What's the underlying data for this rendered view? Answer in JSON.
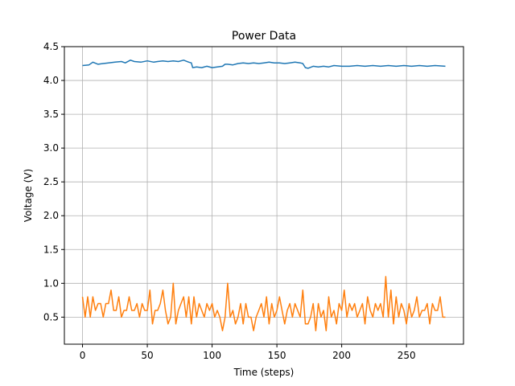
{
  "chart_data": {
    "type": "line",
    "title": "Power Data",
    "xlabel": "Time (steps)",
    "ylabel": "Voltage (V)",
    "xlim": [
      -14,
      294
    ],
    "ylim": [
      0.1,
      4.5
    ],
    "xticks": [
      0,
      50,
      100,
      150,
      200,
      250
    ],
    "yticks": [
      0.5,
      1.0,
      1.5,
      2.0,
      2.5,
      3.0,
      3.5,
      4.0,
      4.5
    ],
    "ytick_labels": [
      "0.5",
      "1.0",
      "1.5",
      "2.0",
      "2.5",
      "3.0",
      "3.5",
      "4.0",
      "4.5"
    ],
    "grid": true,
    "series": [
      {
        "color": "#1f77b4",
        "x": [
          0,
          5,
          8,
          12,
          16,
          20,
          25,
          30,
          33,
          37,
          40,
          45,
          50,
          55,
          58,
          62,
          66,
          70,
          74,
          78,
          82,
          84,
          85,
          88,
          92,
          96,
          100,
          104,
          108,
          110,
          112,
          116,
          120,
          124,
          128,
          132,
          136,
          140,
          144,
          148,
          152,
          156,
          160,
          164,
          168,
          170,
          172,
          174,
          178,
          182,
          186,
          190,
          194,
          200,
          206,
          212,
          218,
          224,
          230,
          236,
          242,
          248,
          254,
          260,
          266,
          272,
          280
        ],
        "y": [
          4.22,
          4.23,
          4.27,
          4.24,
          4.25,
          4.26,
          4.27,
          4.28,
          4.26,
          4.3,
          4.28,
          4.27,
          4.29,
          4.27,
          4.28,
          4.29,
          4.28,
          4.29,
          4.28,
          4.3,
          4.27,
          4.26,
          4.19,
          4.2,
          4.19,
          4.21,
          4.19,
          4.2,
          4.21,
          4.24,
          4.24,
          4.23,
          4.25,
          4.26,
          4.25,
          4.26,
          4.25,
          4.26,
          4.27,
          4.26,
          4.26,
          4.25,
          4.26,
          4.27,
          4.26,
          4.25,
          4.19,
          4.18,
          4.21,
          4.2,
          4.21,
          4.2,
          4.22,
          4.21,
          4.21,
          4.22,
          4.21,
          4.22,
          4.21,
          4.22,
          4.21,
          4.22,
          4.21,
          4.22,
          4.21,
          4.22,
          4.21
        ]
      },
      {
        "color": "#ff7f0e",
        "x": [
          0,
          2,
          4,
          6,
          8,
          10,
          12,
          14,
          16,
          18,
          20,
          22,
          24,
          26,
          28,
          30,
          32,
          34,
          36,
          38,
          40,
          42,
          44,
          46,
          48,
          50,
          52,
          54,
          56,
          58,
          60,
          62,
          64,
          66,
          68,
          70,
          72,
          74,
          76,
          78,
          80,
          82,
          84,
          86,
          88,
          90,
          92,
          94,
          96,
          98,
          100,
          102,
          104,
          106,
          108,
          110,
          112,
          114,
          116,
          118,
          120,
          122,
          124,
          126,
          128,
          130,
          132,
          134,
          136,
          138,
          140,
          142,
          144,
          146,
          148,
          150,
          152,
          154,
          156,
          158,
          160,
          162,
          164,
          166,
          168,
          170,
          172,
          174,
          176,
          178,
          180,
          182,
          184,
          186,
          188,
          190,
          192,
          194,
          196,
          198,
          200,
          202,
          204,
          206,
          208,
          210,
          212,
          214,
          216,
          218,
          220,
          222,
          224,
          226,
          228,
          230,
          232,
          234,
          236,
          238,
          240,
          242,
          244,
          246,
          248,
          250,
          252,
          254,
          256,
          258,
          260,
          262,
          264,
          266,
          268,
          270,
          272,
          274,
          276,
          278,
          280
        ],
        "y": [
          0.8,
          0.5,
          0.8,
          0.5,
          0.8,
          0.6,
          0.7,
          0.7,
          0.5,
          0.7,
          0.7,
          0.9,
          0.6,
          0.6,
          0.8,
          0.5,
          0.6,
          0.6,
          0.8,
          0.6,
          0.6,
          0.7,
          0.5,
          0.7,
          0.6,
          0.6,
          0.9,
          0.4,
          0.6,
          0.6,
          0.7,
          0.9,
          0.6,
          0.4,
          0.5,
          1.0,
          0.4,
          0.6,
          0.7,
          0.8,
          0.5,
          0.8,
          0.4,
          0.8,
          0.5,
          0.7,
          0.6,
          0.5,
          0.7,
          0.6,
          0.7,
          0.5,
          0.6,
          0.5,
          0.3,
          0.5,
          1.0,
          0.5,
          0.6,
          0.4,
          0.5,
          0.7,
          0.4,
          0.7,
          0.5,
          0.5,
          0.3,
          0.5,
          0.6,
          0.7,
          0.5,
          0.8,
          0.4,
          0.7,
          0.5,
          0.6,
          0.8,
          0.6,
          0.4,
          0.6,
          0.7,
          0.5,
          0.7,
          0.6,
          0.5,
          0.9,
          0.4,
          0.4,
          0.5,
          0.7,
          0.3,
          0.7,
          0.5,
          0.6,
          0.3,
          0.8,
          0.5,
          0.6,
          0.4,
          0.7,
          0.6,
          0.9,
          0.5,
          0.7,
          0.6,
          0.7,
          0.5,
          0.6,
          0.7,
          0.4,
          0.8,
          0.6,
          0.5,
          0.7,
          0.6,
          0.7,
          0.5,
          1.1,
          0.5,
          0.9,
          0.4,
          0.8,
          0.5,
          0.7,
          0.6,
          0.4,
          0.7,
          0.5,
          0.6,
          0.8,
          0.5,
          0.6,
          0.6,
          0.7,
          0.4,
          0.7,
          0.6,
          0.6,
          0.8,
          0.5,
          0.5
        ]
      }
    ]
  }
}
